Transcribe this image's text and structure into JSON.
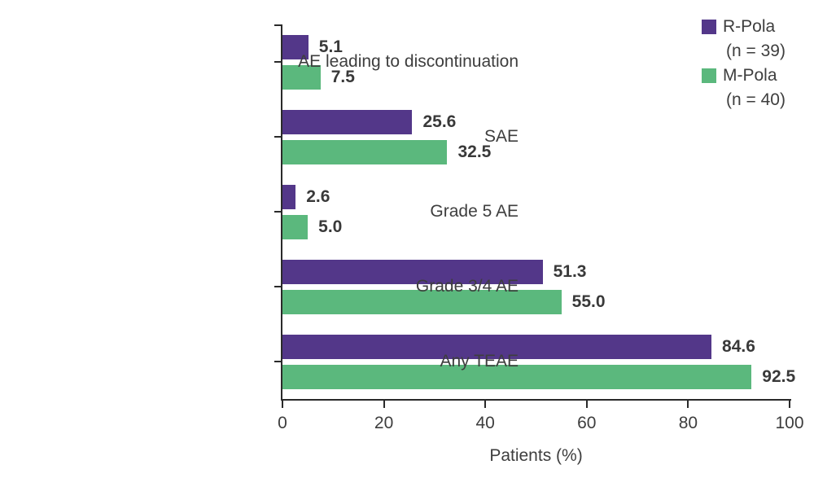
{
  "chart_data": {
    "type": "bar",
    "orientation": "horizontal",
    "title": "",
    "xlabel": "Patients (%)",
    "ylabel": "",
    "xlim": [
      0,
      100
    ],
    "xticks": [
      0,
      20,
      40,
      60,
      80,
      100
    ],
    "grid": false,
    "legend_position": "top-right",
    "value_decimals": 1,
    "categories": [
      "AE leading to discontinuation",
      "SAE",
      "Grade 5 AE",
      "Grade 3/4 AE",
      "Any TEAE"
    ],
    "series": [
      {
        "name": "R-Pola",
        "n_label": "(n = 39)",
        "color": "#533789",
        "values": [
          5.1,
          25.6,
          2.6,
          51.3,
          84.6
        ]
      },
      {
        "name": "M-Pola",
        "n_label": "(n = 40)",
        "color": "#5BB87D",
        "values": [
          7.5,
          32.5,
          5.0,
          55.0,
          92.5
        ]
      }
    ],
    "colors": {
      "axis": "#2a2a2a",
      "text": "#3e3e3e",
      "value_label": "#393939",
      "background": "#ffffff"
    }
  }
}
